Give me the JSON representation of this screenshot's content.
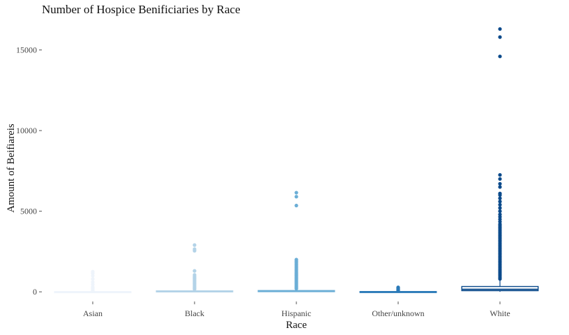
{
  "chart_data": {
    "type": "boxplot",
    "title": "Number of Hospice Benificiaries by Race",
    "xlabel": "Race",
    "ylabel": "Amount of Beifiareis",
    "ylim": [
      -600,
      16800
    ],
    "yticks": [
      0,
      5000,
      10000,
      15000
    ],
    "grid": false,
    "legend": "none",
    "categories": [
      "Asian",
      "Black",
      "Hispanic",
      "Other/unknown",
      "White"
    ],
    "colors": [
      "#eef4fb",
      "#b3d3e8",
      "#6baed6",
      "#2a7ab8",
      "#0b4a8b"
    ],
    "boxes": [
      {
        "q1": 0,
        "median": 3,
        "q3": 10,
        "whisker_low": 0,
        "whisker_high": 25,
        "outliers": [
          60,
          120,
          200,
          300,
          450,
          600,
          800,
          1000,
          1150,
          1250
        ]
      },
      {
        "q1": 5,
        "median": 20,
        "q3": 60,
        "whisker_low": 0,
        "whisker_high": 140,
        "outliers": [
          160,
          200,
          260,
          330,
          400,
          480,
          560,
          640,
          720,
          800,
          880,
          960,
          1050,
          1300,
          2550,
          2650,
          2900
        ]
      },
      {
        "q1": 10,
        "median": 30,
        "q3": 80,
        "whisker_low": 0,
        "whisker_high": 180,
        "outliers": [
          200,
          260,
          320,
          400,
          480,
          560,
          640,
          720,
          800,
          880,
          960,
          1040,
          1120,
          1200,
          1300,
          1400,
          1500,
          1600,
          1700,
          1800,
          1900,
          2000,
          5350,
          5900,
          6150
        ]
      },
      {
        "q1": 2,
        "median": 8,
        "q3": 20,
        "whisker_low": 0,
        "whisker_high": 45,
        "outliers": [
          60,
          90,
          120,
          150,
          180,
          210,
          240,
          280
        ]
      },
      {
        "q1": 70,
        "median": 150,
        "q3": 330,
        "whisker_low": 0,
        "whisker_high": 720,
        "outliers": [
          800,
          900,
          1000,
          1100,
          1200,
          1300,
          1400,
          1500,
          1600,
          1700,
          1800,
          1900,
          2000,
          2100,
          2200,
          2300,
          2400,
          2500,
          2600,
          2700,
          2800,
          2900,
          3000,
          3100,
          3200,
          3300,
          3400,
          3500,
          3600,
          3700,
          3800,
          3900,
          4000,
          4100,
          4200,
          4350,
          4500,
          4650,
          4800,
          5000,
          5200,
          5400,
          5600,
          5800,
          6000,
          6100,
          6500,
          6700,
          7000,
          7250,
          14600,
          15800,
          16300
        ]
      }
    ]
  }
}
